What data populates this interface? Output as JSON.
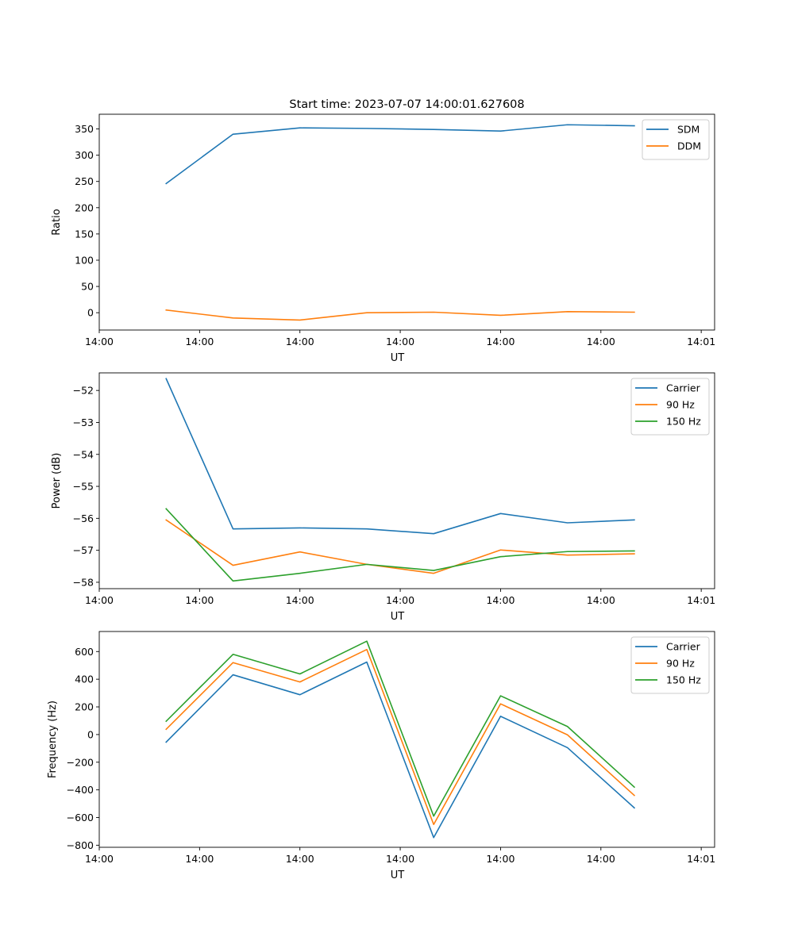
{
  "chart_data": [
    {
      "type": "line",
      "title": "Start time: 2023-07-07 14:00:01.627608",
      "xlabel": "UT",
      "ylabel": "Ratio",
      "x": [
        1,
        2,
        3,
        4,
        5,
        6,
        7,
        8
      ],
      "xlim": [
        0,
        9.2
      ],
      "xticks": [
        0,
        1.5,
        3,
        4.5,
        6,
        7.5,
        9
      ],
      "xtick_labels": [
        "14:00",
        "14:00",
        "14:00",
        "14:00",
        "14:00",
        "14:00",
        "14:01"
      ],
      "ylim": [
        -33,
        378
      ],
      "yticks": [
        0,
        50,
        100,
        150,
        200,
        250,
        300,
        350
      ],
      "legend_position": "top-right",
      "series": [
        {
          "name": "SDM",
          "color": "#1f77b4",
          "values": [
            246,
            340,
            352,
            351,
            349,
            346,
            358,
            356
          ]
        },
        {
          "name": "DDM",
          "color": "#ff7f0e",
          "values": [
            5,
            -10,
            -14,
            0,
            1,
            -5,
            2,
            1
          ]
        }
      ]
    },
    {
      "type": "line",
      "title": "",
      "xlabel": "UT",
      "ylabel": "Power (dB)",
      "x": [
        1,
        2,
        3,
        4,
        5,
        6,
        7,
        8
      ],
      "xlim": [
        0,
        9.2
      ],
      "xticks": [
        0,
        1.5,
        3,
        4.5,
        6,
        7.5,
        9
      ],
      "xtick_labels": [
        "14:00",
        "14:00",
        "14:00",
        "14:00",
        "14:00",
        "14:00",
        "14:01"
      ],
      "ylim": [
        -58.2,
        -51.45
      ],
      "yticks": [
        -58,
        -57,
        -56,
        -55,
        -54,
        -53,
        -52
      ],
      "legend_position": "top-right",
      "series": [
        {
          "name": "Carrier",
          "color": "#1f77b4",
          "values": [
            -51.63,
            -56.33,
            -56.3,
            -56.33,
            -56.48,
            -55.85,
            -56.14,
            -56.05
          ]
        },
        {
          "name": "90 Hz",
          "color": "#ff7f0e",
          "values": [
            -56.05,
            -57.47,
            -57.05,
            -57.44,
            -57.72,
            -56.99,
            -57.15,
            -57.11
          ]
        },
        {
          "name": "150 Hz",
          "color": "#2ca02c",
          "values": [
            -55.7,
            -57.96,
            -57.72,
            -57.44,
            -57.63,
            -57.2,
            -57.04,
            -57.02
          ]
        }
      ]
    },
    {
      "type": "line",
      "title": "",
      "xlabel": "UT",
      "ylabel": "Frequency (Hz)",
      "x": [
        1,
        2,
        3,
        4,
        5,
        6,
        7,
        8
      ],
      "xlim": [
        0,
        9.2
      ],
      "xticks": [
        0,
        1.5,
        3,
        4.5,
        6,
        7.5,
        9
      ],
      "xtick_labels": [
        "14:00",
        "14:00",
        "14:00",
        "14:00",
        "14:00",
        "14:00",
        "14:01"
      ],
      "ylim": [
        -815,
        745
      ],
      "yticks": [
        -800,
        -600,
        -400,
        -200,
        0,
        200,
        400,
        600
      ],
      "legend_position": "top-right",
      "series": [
        {
          "name": "Carrier",
          "color": "#1f77b4",
          "values": [
            -55,
            432,
            288,
            524,
            -745,
            132,
            -95,
            -530
          ]
        },
        {
          "name": "90 Hz",
          "color": "#ff7f0e",
          "values": [
            38,
            520,
            380,
            615,
            -650,
            222,
            -2,
            -440
          ]
        },
        {
          "name": "150 Hz",
          "color": "#2ca02c",
          "values": [
            96,
            580,
            438,
            675,
            -590,
            280,
            58,
            -380
          ]
        }
      ]
    }
  ]
}
